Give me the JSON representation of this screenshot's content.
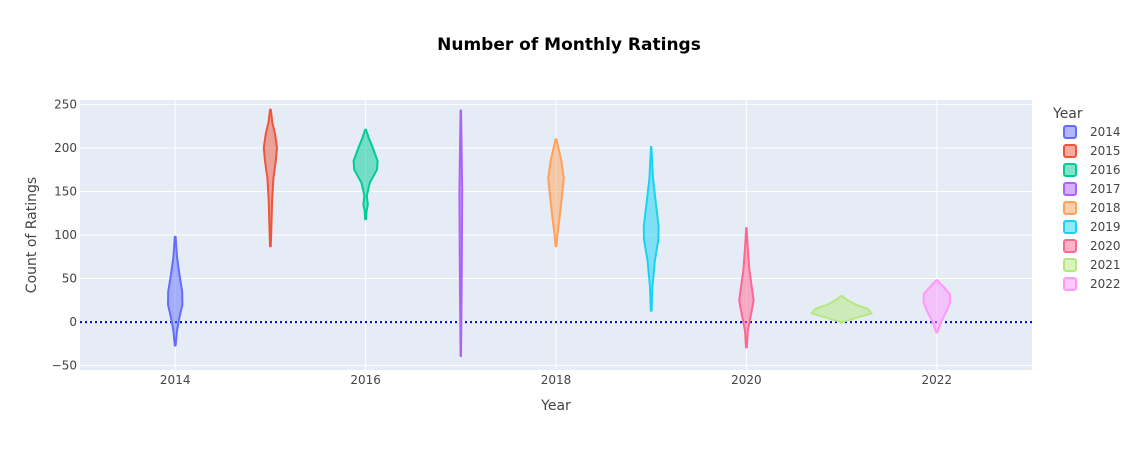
{
  "chart_data": {
    "type": "violin",
    "title": "Number of Monthly Ratings",
    "xlabel": "Year",
    "ylabel": "Count of Ratings",
    "xlim": [
      2013,
      2023
    ],
    "ylim": [
      -55,
      255
    ],
    "x_ticks": [
      2014,
      2016,
      2018,
      2020,
      2022
    ],
    "y_ticks": [
      -50,
      0,
      50,
      100,
      150,
      200,
      250
    ],
    "grid": true,
    "reference_line": {
      "y": 0,
      "style": "dotted",
      "color": "#0000cc"
    },
    "legend": {
      "title": "Year",
      "placement": "right"
    },
    "series": [
      {
        "name": "2014",
        "x": 2014,
        "color": "#636efa",
        "min": -27,
        "max": 98,
        "profile": [
          [
            -27,
            0.03
          ],
          [
            -10,
            0.15
          ],
          [
            5,
            0.35
          ],
          [
            20,
            0.6
          ],
          [
            35,
            0.58
          ],
          [
            55,
            0.35
          ],
          [
            75,
            0.15
          ],
          [
            98,
            0.03
          ]
        ]
      },
      {
        "name": "2015",
        "x": 2015,
        "color": "#ef553b",
        "min": 87,
        "max": 244,
        "profile": [
          [
            87,
            0.03
          ],
          [
            110,
            0.08
          ],
          [
            140,
            0.14
          ],
          [
            165,
            0.25
          ],
          [
            185,
            0.45
          ],
          [
            200,
            0.55
          ],
          [
            215,
            0.4
          ],
          [
            230,
            0.15
          ],
          [
            244,
            0.03
          ]
        ]
      },
      {
        "name": "2016",
        "x": 2016,
        "color": "#00cc96",
        "min": 118,
        "max": 221,
        "profile": [
          [
            118,
            0.03
          ],
          [
            128,
            0.08
          ],
          [
            135,
            0.18
          ],
          [
            145,
            0.1
          ],
          [
            160,
            0.35
          ],
          [
            175,
            0.95
          ],
          [
            185,
            1.0
          ],
          [
            200,
            0.6
          ],
          [
            212,
            0.25
          ],
          [
            221,
            0.03
          ]
        ]
      },
      {
        "name": "2017",
        "x": 2017,
        "color": "#ab63fa",
        "min": -39,
        "max": 243,
        "profile": [
          [
            -39,
            0.02
          ],
          [
            10,
            0.05
          ],
          [
            60,
            0.08
          ],
          [
            110,
            0.1
          ],
          [
            150,
            0.12
          ],
          [
            200,
            0.07
          ],
          [
            243,
            0.02
          ]
        ]
      },
      {
        "name": "2018",
        "x": 2018,
        "color": "#ffa15a",
        "min": 87,
        "max": 210,
        "profile": [
          [
            87,
            0.03
          ],
          [
            100,
            0.12
          ],
          [
            120,
            0.3
          ],
          [
            145,
            0.5
          ],
          [
            165,
            0.65
          ],
          [
            185,
            0.45
          ],
          [
            200,
            0.2
          ],
          [
            210,
            0.03
          ]
        ]
      },
      {
        "name": "2019",
        "x": 2019,
        "color": "#19d3f3",
        "min": 13,
        "max": 201,
        "profile": [
          [
            13,
            0.03
          ],
          [
            40,
            0.1
          ],
          [
            70,
            0.3
          ],
          [
            95,
            0.6
          ],
          [
            110,
            0.62
          ],
          [
            135,
            0.4
          ],
          [
            165,
            0.15
          ],
          [
            201,
            0.02
          ]
        ]
      },
      {
        "name": "2020",
        "x": 2020,
        "color": "#ff6692",
        "min": -29,
        "max": 108,
        "profile": [
          [
            -29,
            0.03
          ],
          [
            -10,
            0.12
          ],
          [
            10,
            0.4
          ],
          [
            25,
            0.6
          ],
          [
            40,
            0.45
          ],
          [
            60,
            0.25
          ],
          [
            85,
            0.12
          ],
          [
            108,
            0.02
          ]
        ]
      },
      {
        "name": "2021",
        "x": 2021,
        "color": "#b6e880",
        "min": 0,
        "max": 30,
        "profile": [
          [
            0,
            0.05
          ],
          [
            5,
            1.25
          ],
          [
            10,
            2.5
          ],
          [
            15,
            2.2
          ],
          [
            20,
            1.2
          ],
          [
            25,
            0.5
          ],
          [
            30,
            0.05
          ]
        ]
      },
      {
        "name": "2022",
        "x": 2022,
        "color": "#ff97ff",
        "min": -12,
        "max": 48,
        "profile": [
          [
            -12,
            0.03
          ],
          [
            0,
            0.35
          ],
          [
            12,
            0.8
          ],
          [
            22,
            1.1
          ],
          [
            32,
            1.1
          ],
          [
            40,
            0.6
          ],
          [
            48,
            0.05
          ]
        ]
      }
    ]
  }
}
